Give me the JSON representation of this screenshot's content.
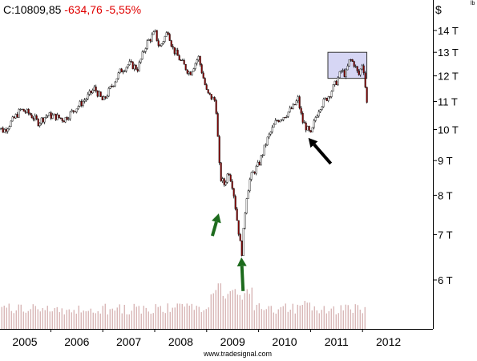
{
  "header": {
    "symbol_value": "C:10809,85",
    "change": "-634,76",
    "change_pct": "-5,55%"
  },
  "y_axis_unit": "$",
  "corner_mark": "lb",
  "credit": "www.tradesignal.com",
  "colors": {
    "up_candle": "#ffffff",
    "down_candle": "#8b0000",
    "outline": "#000000",
    "highlight_fill": "#c8c8f0",
    "arrow_green": "#1d6b1d",
    "arrow_black": "#000000",
    "volume_bar": "#c99a9a",
    "change_red": "#e00000"
  },
  "chart_data": {
    "type": "line",
    "title": "",
    "scale": "log",
    "xlabel": "",
    "ylabel": "$",
    "ylim": [
      5000,
      15500
    ],
    "x_ticks": [
      "2005",
      "2006",
      "2007",
      "2008",
      "2009",
      "2010",
      "2011",
      "2012"
    ],
    "y_ticks": [
      {
        "value": 6000,
        "label": "6 T"
      },
      {
        "value": 7000,
        "label": "7 T"
      },
      {
        "value": 8000,
        "label": "8 T"
      },
      {
        "value": 9000,
        "label": "9 T"
      },
      {
        "value": 10000,
        "label": "10 T"
      },
      {
        "value": 11000,
        "label": "11 T"
      },
      {
        "value": 12000,
        "label": "12 T"
      },
      {
        "value": 13000,
        "label": "13 T"
      },
      {
        "value": 14000,
        "label": "14 T"
      }
    ],
    "series": [
      {
        "values": [
          {
            "x": "2004-06",
            "y": 10200
          },
          {
            "x": "2004-08",
            "y": 9950
          },
          {
            "x": "2004-10",
            "y": 10300
          },
          {
            "x": "2004-12",
            "y": 10700
          },
          {
            "x": "2005-02",
            "y": 10550
          },
          {
            "x": "2005-04",
            "y": 10250
          },
          {
            "x": "2005-06",
            "y": 10500
          },
          {
            "x": "2005-08",
            "y": 10450
          },
          {
            "x": "2005-10",
            "y": 10350
          },
          {
            "x": "2006-01",
            "y": 10800
          },
          {
            "x": "2006-03",
            "y": 11100
          },
          {
            "x": "2006-05",
            "y": 11500
          },
          {
            "x": "2006-07",
            "y": 11000
          },
          {
            "x": "2006-09",
            "y": 11600
          },
          {
            "x": "2006-11",
            "y": 12200
          },
          {
            "x": "2007-01",
            "y": 12500
          },
          {
            "x": "2007-03",
            "y": 12300
          },
          {
            "x": "2007-05",
            "y": 13400
          },
          {
            "x": "2007-07",
            "y": 13900
          },
          {
            "x": "2007-08",
            "y": 13200
          },
          {
            "x": "2007-10",
            "y": 14000
          },
          {
            "x": "2007-11",
            "y": 13200
          },
          {
            "x": "2008-01",
            "y": 12600
          },
          {
            "x": "2008-03",
            "y": 12100
          },
          {
            "x": "2008-05",
            "y": 12800
          },
          {
            "x": "2008-07",
            "y": 11300
          },
          {
            "x": "2008-09",
            "y": 11000
          },
          {
            "x": "2008-10",
            "y": 8500
          },
          {
            "x": "2008-11",
            "y": 8300
          },
          {
            "x": "2008-12",
            "y": 8700
          },
          {
            "x": "2009-01",
            "y": 8200
          },
          {
            "x": "2009-02",
            "y": 7300
          },
          {
            "x": "2009-03",
            "y": 6550
          },
          {
            "x": "2009-04",
            "y": 7900
          },
          {
            "x": "2009-05",
            "y": 8500
          },
          {
            "x": "2009-07",
            "y": 8900
          },
          {
            "x": "2009-09",
            "y": 9700
          },
          {
            "x": "2009-11",
            "y": 10300
          },
          {
            "x": "2010-01",
            "y": 10500
          },
          {
            "x": "2010-03",
            "y": 10800
          },
          {
            "x": "2010-04",
            "y": 11100
          },
          {
            "x": "2010-05",
            "y": 10300
          },
          {
            "x": "2010-07",
            "y": 9800
          },
          {
            "x": "2010-08",
            "y": 10400
          },
          {
            "x": "2010-09",
            "y": 10800
          },
          {
            "x": "2010-11",
            "y": 11200
          },
          {
            "x": "2011-01",
            "y": 11800
          },
          {
            "x": "2011-02",
            "y": 12200
          },
          {
            "x": "2011-03",
            "y": 12050
          },
          {
            "x": "2011-04",
            "y": 12700
          },
          {
            "x": "2011-05",
            "y": 12500
          },
          {
            "x": "2011-06",
            "y": 12000
          },
          {
            "x": "2011-07",
            "y": 12600
          },
          {
            "x": "2011-08",
            "y": 10810
          }
        ]
      }
    ],
    "annotations": [
      {
        "type": "box",
        "x_range": [
          "2010-11",
          "2011-08"
        ],
        "y_range": [
          11900,
          13000
        ]
      },
      {
        "type": "arrow",
        "color": "black",
        "points_to": {
          "x": "2010-06",
          "y": 9800
        }
      },
      {
        "type": "arrow",
        "color": "green",
        "points_to": {
          "x": "2008-10",
          "y": 7600
        }
      },
      {
        "type": "arrow",
        "color": "green",
        "points_to": {
          "x": "2009-03",
          "y": 6550
        }
      }
    ],
    "volume_panel": true,
    "grid": false,
    "legend": "none"
  }
}
